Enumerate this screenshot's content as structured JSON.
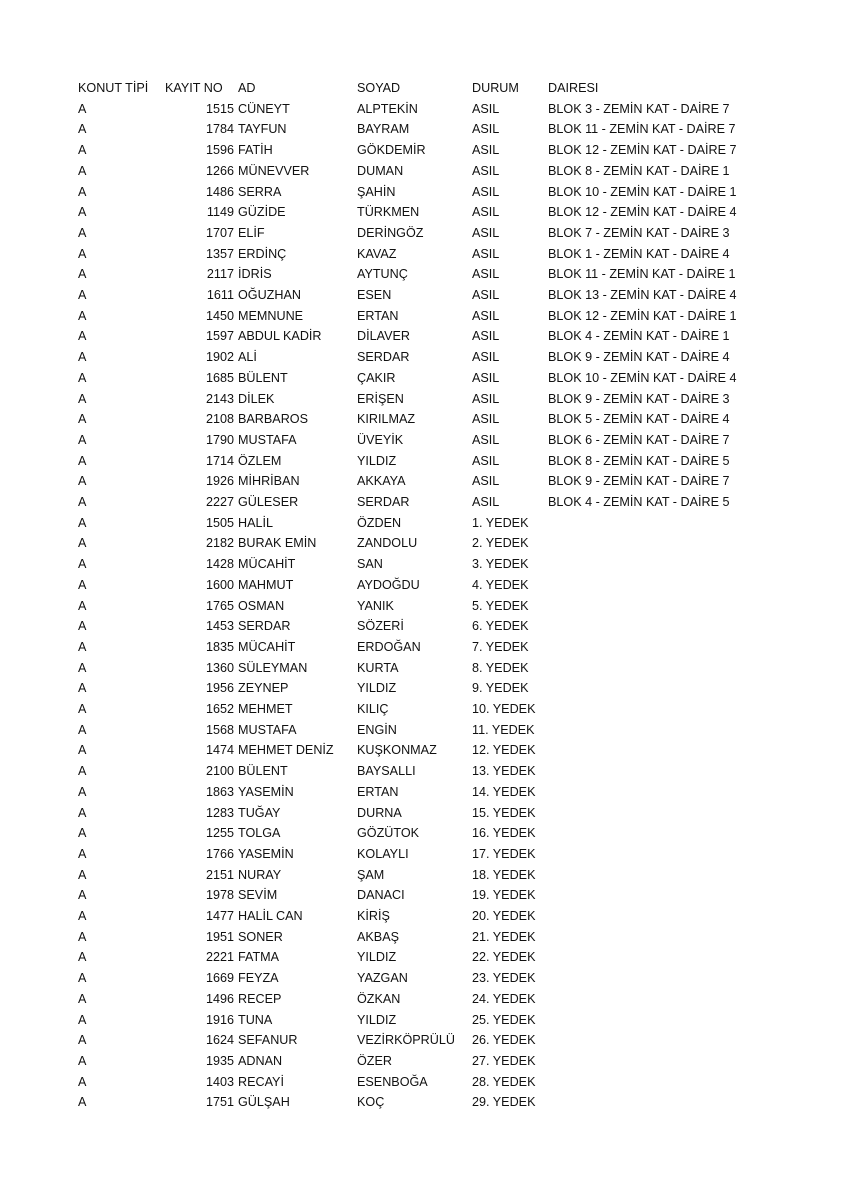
{
  "headers": {
    "konut_tipi": "KONUT TİPİ",
    "kayit_no": "KAYIT NO",
    "ad": "AD",
    "soyad": "SOYAD",
    "durum": "DURUM",
    "dairesi": "DAIRESI"
  },
  "rows": [
    [
      "A",
      "1515",
      "CÜNEYT",
      "ALPTEKİN",
      "ASIL",
      "BLOK 3 - ZEMİN KAT - DAİRE 7"
    ],
    [
      "A",
      "1784",
      "TAYFUN",
      "BAYRAM",
      "ASIL",
      "BLOK 11 - ZEMİN KAT - DAİRE 7"
    ],
    [
      "A",
      "1596",
      "FATİH",
      "GÖKDEMİR",
      "ASIL",
      "BLOK 12 - ZEMİN KAT - DAİRE 7"
    ],
    [
      "A",
      "1266",
      "MÜNEVVER",
      "DUMAN",
      "ASIL",
      "BLOK 8 - ZEMİN KAT - DAİRE 1"
    ],
    [
      "A",
      "1486",
      "SERRA",
      "ŞAHİN",
      "ASIL",
      "BLOK 10 - ZEMİN KAT - DAİRE 1"
    ],
    [
      "A",
      "1149",
      "GÜZİDE",
      "TÜRKMEN",
      "ASIL",
      "BLOK 12 - ZEMİN KAT - DAİRE 4"
    ],
    [
      "A",
      "1707",
      "ELİF",
      "DERİNGÖZ",
      "ASIL",
      "BLOK 7 - ZEMİN KAT - DAİRE 3"
    ],
    [
      "A",
      "1357",
      "ERDİNÇ",
      "KAVAZ",
      "ASIL",
      "BLOK 1 - ZEMİN KAT - DAİRE 4"
    ],
    [
      "A",
      "2117",
      "İDRİS",
      "AYTUNÇ",
      "ASIL",
      "BLOK 11 - ZEMİN KAT - DAİRE 1"
    ],
    [
      "A",
      "1611",
      "OĞUZHAN",
      "ESEN",
      "ASIL",
      "BLOK 13 - ZEMİN KAT - DAİRE 4"
    ],
    [
      "A",
      "1450",
      "MEMNUNE",
      "ERTAN",
      "ASIL",
      "BLOK 12 - ZEMİN KAT - DAİRE 1"
    ],
    [
      "A",
      "1597",
      "ABDUL KADİR",
      "DİLAVER",
      "ASIL",
      "BLOK 4 - ZEMİN KAT - DAİRE 1"
    ],
    [
      "A",
      "1902",
      "ALİ",
      "SERDAR",
      "ASIL",
      "BLOK 9 - ZEMİN KAT - DAİRE 4"
    ],
    [
      "A",
      "1685",
      "BÜLENT",
      "ÇAKIR",
      "ASIL",
      "BLOK 10 - ZEMİN KAT - DAİRE 4"
    ],
    [
      "A",
      "2143",
      "DİLEK",
      "ERİŞEN",
      "ASIL",
      "BLOK 9 - ZEMİN KAT - DAİRE 3"
    ],
    [
      "A",
      "2108",
      "BARBAROS",
      "KIRILMAZ",
      "ASIL",
      "BLOK 5 - ZEMİN KAT - DAİRE 4"
    ],
    [
      "A",
      "1790",
      "MUSTAFA",
      "ÜVEYİK",
      "ASIL",
      "BLOK 6 - ZEMİN KAT - DAİRE 7"
    ],
    [
      "A",
      "1714",
      "ÖZLEM",
      "YILDIZ",
      "ASIL",
      "BLOK 8 - ZEMİN KAT - DAİRE 5"
    ],
    [
      "A",
      "1926",
      "MİHRİBAN",
      "AKKAYA",
      "ASIL",
      "BLOK 9 - ZEMİN KAT - DAİRE 7"
    ],
    [
      "A",
      "2227",
      "GÜLESER",
      "SERDAR",
      "ASIL",
      "BLOK 4 - ZEMİN KAT - DAİRE 5"
    ],
    [
      "A",
      "1505",
      "HALİL",
      "ÖZDEN",
      "1. YEDEK",
      ""
    ],
    [
      "A",
      "2182",
      "BURAK EMİN",
      "ZANDOLU",
      "2. YEDEK",
      ""
    ],
    [
      "A",
      "1428",
      "MÜCAHİT",
      "SAN",
      "3. YEDEK",
      ""
    ],
    [
      "A",
      "1600",
      "MAHMUT",
      "AYDOĞDU",
      "4. YEDEK",
      ""
    ],
    [
      "A",
      "1765",
      "OSMAN",
      "YANIK",
      "5. YEDEK",
      ""
    ],
    [
      "A",
      "1453",
      "SERDAR",
      "SÖZERİ",
      "6. YEDEK",
      ""
    ],
    [
      "A",
      "1835",
      "MÜCAHİT",
      "ERDOĞAN",
      "7. YEDEK",
      ""
    ],
    [
      "A",
      "1360",
      "SÜLEYMAN",
      "KURTA",
      "8. YEDEK",
      ""
    ],
    [
      "A",
      "1956",
      "ZEYNEP",
      "YILDIZ",
      "9. YEDEK",
      ""
    ],
    [
      "A",
      "1652",
      "MEHMET",
      "KILIÇ",
      "10. YEDEK",
      ""
    ],
    [
      "A",
      "1568",
      "MUSTAFA",
      "ENGİN",
      "11. YEDEK",
      ""
    ],
    [
      "A",
      "1474",
      "MEHMET DENİZ",
      "KUŞKONMAZ",
      "12. YEDEK",
      ""
    ],
    [
      "A",
      "2100",
      "BÜLENT",
      "BAYSALLI",
      "13. YEDEK",
      ""
    ],
    [
      "A",
      "1863",
      "YASEMİN",
      "ERTAN",
      "14. YEDEK",
      ""
    ],
    [
      "A",
      "1283",
      "TUĞAY",
      "DURNA",
      "15. YEDEK",
      ""
    ],
    [
      "A",
      "1255",
      "TOLGA",
      "GÖZÜTOK",
      "16. YEDEK",
      ""
    ],
    [
      "A",
      "1766",
      "YASEMİN",
      "KOLAYLI",
      "17. YEDEK",
      ""
    ],
    [
      "A",
      "2151",
      "NURAY",
      "ŞAM",
      "18. YEDEK",
      ""
    ],
    [
      "A",
      "1978",
      "SEVİM",
      "DANACI",
      "19. YEDEK",
      ""
    ],
    [
      "A",
      "1477",
      "HALİL CAN",
      "KİRİŞ",
      "20. YEDEK",
      ""
    ],
    [
      "A",
      "1951",
      "SONER",
      "AKBAŞ",
      "21. YEDEK",
      ""
    ],
    [
      "A",
      "2221",
      "FATMA",
      "YILDIZ",
      "22. YEDEK",
      ""
    ],
    [
      "A",
      "1669",
      "FEYZA",
      "YAZGAN",
      "23. YEDEK",
      ""
    ],
    [
      "A",
      "1496",
      "RECEP",
      "ÖZKAN",
      "24. YEDEK",
      ""
    ],
    [
      "A",
      "1916",
      "TUNA",
      "YILDIZ",
      "25. YEDEK",
      ""
    ],
    [
      "A",
      "1624",
      "SEFANUR",
      "VEZİRKÖPRÜLÜ",
      "26. YEDEK",
      ""
    ],
    [
      "A",
      "1935",
      "ADNAN",
      "ÖZER",
      "27. YEDEK",
      ""
    ],
    [
      "A",
      "1403",
      "RECAYİ",
      "ESENBOĞA",
      "28. YEDEK",
      ""
    ],
    [
      "A",
      "1751",
      "GÜLŞAH",
      "KOÇ",
      "29. YEDEK",
      ""
    ]
  ]
}
